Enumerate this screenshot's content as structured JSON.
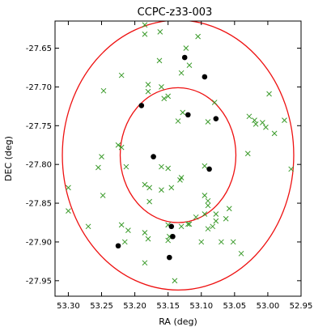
{
  "chart_data": {
    "type": "scatter",
    "title": "CCPC-z33-003",
    "xlabel": "RA (deg)",
    "ylabel": "DEC (deg)",
    "xlim": [
      53.32,
      52.95
    ],
    "ylim": [
      -27.97,
      -27.615
    ],
    "x_inverted": true,
    "grid": false,
    "x_ticks": [
      53.3,
      53.25,
      53.2,
      53.15,
      53.1,
      53.05,
      53.0,
      52.95
    ],
    "x_tick_labels": [
      "53.30",
      "53.25",
      "53.20",
      "53.15",
      "53.10",
      "53.05",
      "53.00",
      "52.95"
    ],
    "y_ticks": [
      -27.65,
      -27.7,
      -27.75,
      -27.8,
      -27.85,
      -27.9,
      -27.95
    ],
    "y_tick_labels": [
      "-27.65",
      "-27.70",
      "-27.75",
      "-27.80",
      "-27.85",
      "-27.90",
      "-27.95"
    ],
    "circles": [
      {
        "center": [
          53.135,
          -27.788
        ],
        "radius": 0.087,
        "color": "#ee1111"
      },
      {
        "center": [
          53.135,
          -27.788
        ],
        "radius": 0.174,
        "color": "#ee1111"
      }
    ],
    "series": [
      {
        "marker": "x",
        "color": "#3a9a2a",
        "points": [
          [
            53.185,
            -27.62
          ],
          [
            53.185,
            -27.632
          ],
          [
            53.162,
            -27.629
          ],
          [
            53.105,
            -27.635
          ],
          [
            53.123,
            -27.65
          ],
          [
            53.163,
            -27.666
          ],
          [
            53.118,
            -27.672
          ],
          [
            53.13,
            -27.682
          ],
          [
            53.22,
            -27.685
          ],
          [
            53.18,
            -27.697
          ],
          [
            53.18,
            -27.706
          ],
          [
            53.16,
            -27.7
          ],
          [
            53.247,
            -27.705
          ],
          [
            53.156,
            -27.715
          ],
          [
            53.15,
            -27.712
          ],
          [
            53.128,
            -27.733
          ],
          [
            53.08,
            -27.72
          ],
          [
            53.028,
            -27.738
          ],
          [
            52.998,
            -27.709
          ],
          [
            53.09,
            -27.745
          ],
          [
            53.135,
            -27.744
          ],
          [
            53.02,
            -27.743
          ],
          [
            53.018,
            -27.748
          ],
          [
            53.008,
            -27.746
          ],
          [
            53.003,
            -27.752
          ],
          [
            52.99,
            -27.76
          ],
          [
            52.975,
            -27.743
          ],
          [
            52.965,
            -27.806
          ],
          [
            53.225,
            -27.775
          ],
          [
            53.25,
            -27.79
          ],
          [
            53.03,
            -27.786
          ],
          [
            53.213,
            -27.803
          ],
          [
            53.255,
            -27.804
          ],
          [
            53.16,
            -27.803
          ],
          [
            53.15,
            -27.805
          ],
          [
            53.095,
            -27.802
          ],
          [
            53.13,
            -27.817
          ],
          [
            53.132,
            -27.82
          ],
          [
            53.3,
            -27.83
          ],
          [
            53.185,
            -27.826
          ],
          [
            53.178,
            -27.83
          ],
          [
            53.16,
            -27.833
          ],
          [
            53.145,
            -27.83
          ],
          [
            53.095,
            -27.84
          ],
          [
            53.09,
            -27.847
          ],
          [
            53.09,
            -27.853
          ],
          [
            53.248,
            -27.84
          ],
          [
            53.178,
            -27.848
          ],
          [
            53.058,
            -27.857
          ],
          [
            53.095,
            -27.864
          ],
          [
            53.108,
            -27.868
          ],
          [
            53.078,
            -27.864
          ],
          [
            53.078,
            -27.873
          ],
          [
            53.3,
            -27.86
          ],
          [
            53.27,
            -27.88
          ],
          [
            53.22,
            -27.878
          ],
          [
            53.21,
            -27.885
          ],
          [
            53.185,
            -27.888
          ],
          [
            53.18,
            -27.896
          ],
          [
            53.15,
            -27.878
          ],
          [
            53.13,
            -27.88
          ],
          [
            53.118,
            -27.877
          ],
          [
            53.083,
            -27.88
          ],
          [
            53.063,
            -27.87
          ],
          [
            53.07,
            -27.9
          ],
          [
            53.052,
            -27.9
          ],
          [
            53.215,
            -27.9
          ],
          [
            53.15,
            -27.898
          ],
          [
            53.148,
            -27.893
          ],
          [
            53.1,
            -27.9
          ],
          [
            53.04,
            -27.915
          ],
          [
            53.09,
            -27.883
          ],
          [
            53.14,
            -27.95
          ],
          [
            53.185,
            -27.927
          ],
          [
            53.22,
            -27.778
          ],
          [
            53.12,
            -27.877
          ]
        ]
      },
      {
        "marker": "o",
        "color": "#000000",
        "points": [
          [
            53.125,
            -27.662
          ],
          [
            53.095,
            -27.687
          ],
          [
            53.19,
            -27.724
          ],
          [
            53.12,
            -27.736
          ],
          [
            53.078,
            -27.741
          ],
          [
            53.172,
            -27.79
          ],
          [
            53.088,
            -27.806
          ],
          [
            53.145,
            -27.88
          ],
          [
            53.143,
            -27.893
          ],
          [
            53.225,
            -27.905
          ],
          [
            53.148,
            -27.92
          ]
        ]
      }
    ]
  }
}
